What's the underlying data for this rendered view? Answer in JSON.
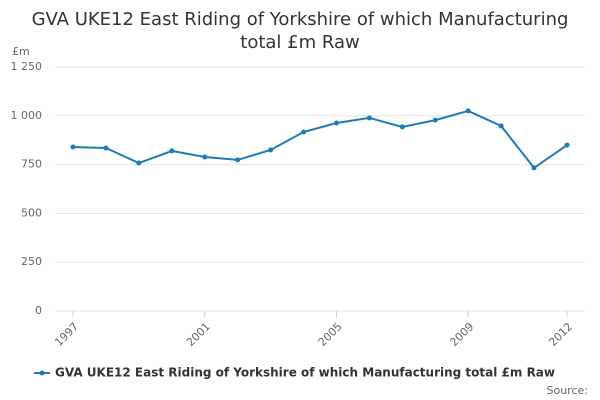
{
  "chart_data": {
    "type": "line",
    "title": "GVA UKE12 East Riding of Yorkshire of which Manufacturing total £m Raw",
    "y_label": "£m",
    "x": [
      1997,
      1998,
      1999,
      2000,
      2001,
      2002,
      2003,
      2004,
      2005,
      2006,
      2007,
      2008,
      2009,
      2010,
      2011,
      2012
    ],
    "xlim": [
      1997,
      2012
    ],
    "xticks": [
      1997,
      2001,
      2005,
      2009,
      2012
    ],
    "series": [
      {
        "name": "GVA UKE12 East Riding of Yorkshire of which Manufacturing total £m Raw",
        "color": "#1f7bb6",
        "values": [
          840,
          835,
          758,
          820,
          789,
          774,
          825,
          917,
          963,
          989,
          943,
          978,
          1025,
          948,
          733,
          850
        ]
      }
    ],
    "ylim": [
      0,
      1250
    ],
    "yticks": [
      0,
      250,
      500,
      750,
      {
        "value": 1000,
        "label": "1 000"
      },
      {
        "value": 1250,
        "label": "1 250"
      }
    ],
    "grid": true,
    "legend": "bottom-left",
    "source": "Source:"
  }
}
